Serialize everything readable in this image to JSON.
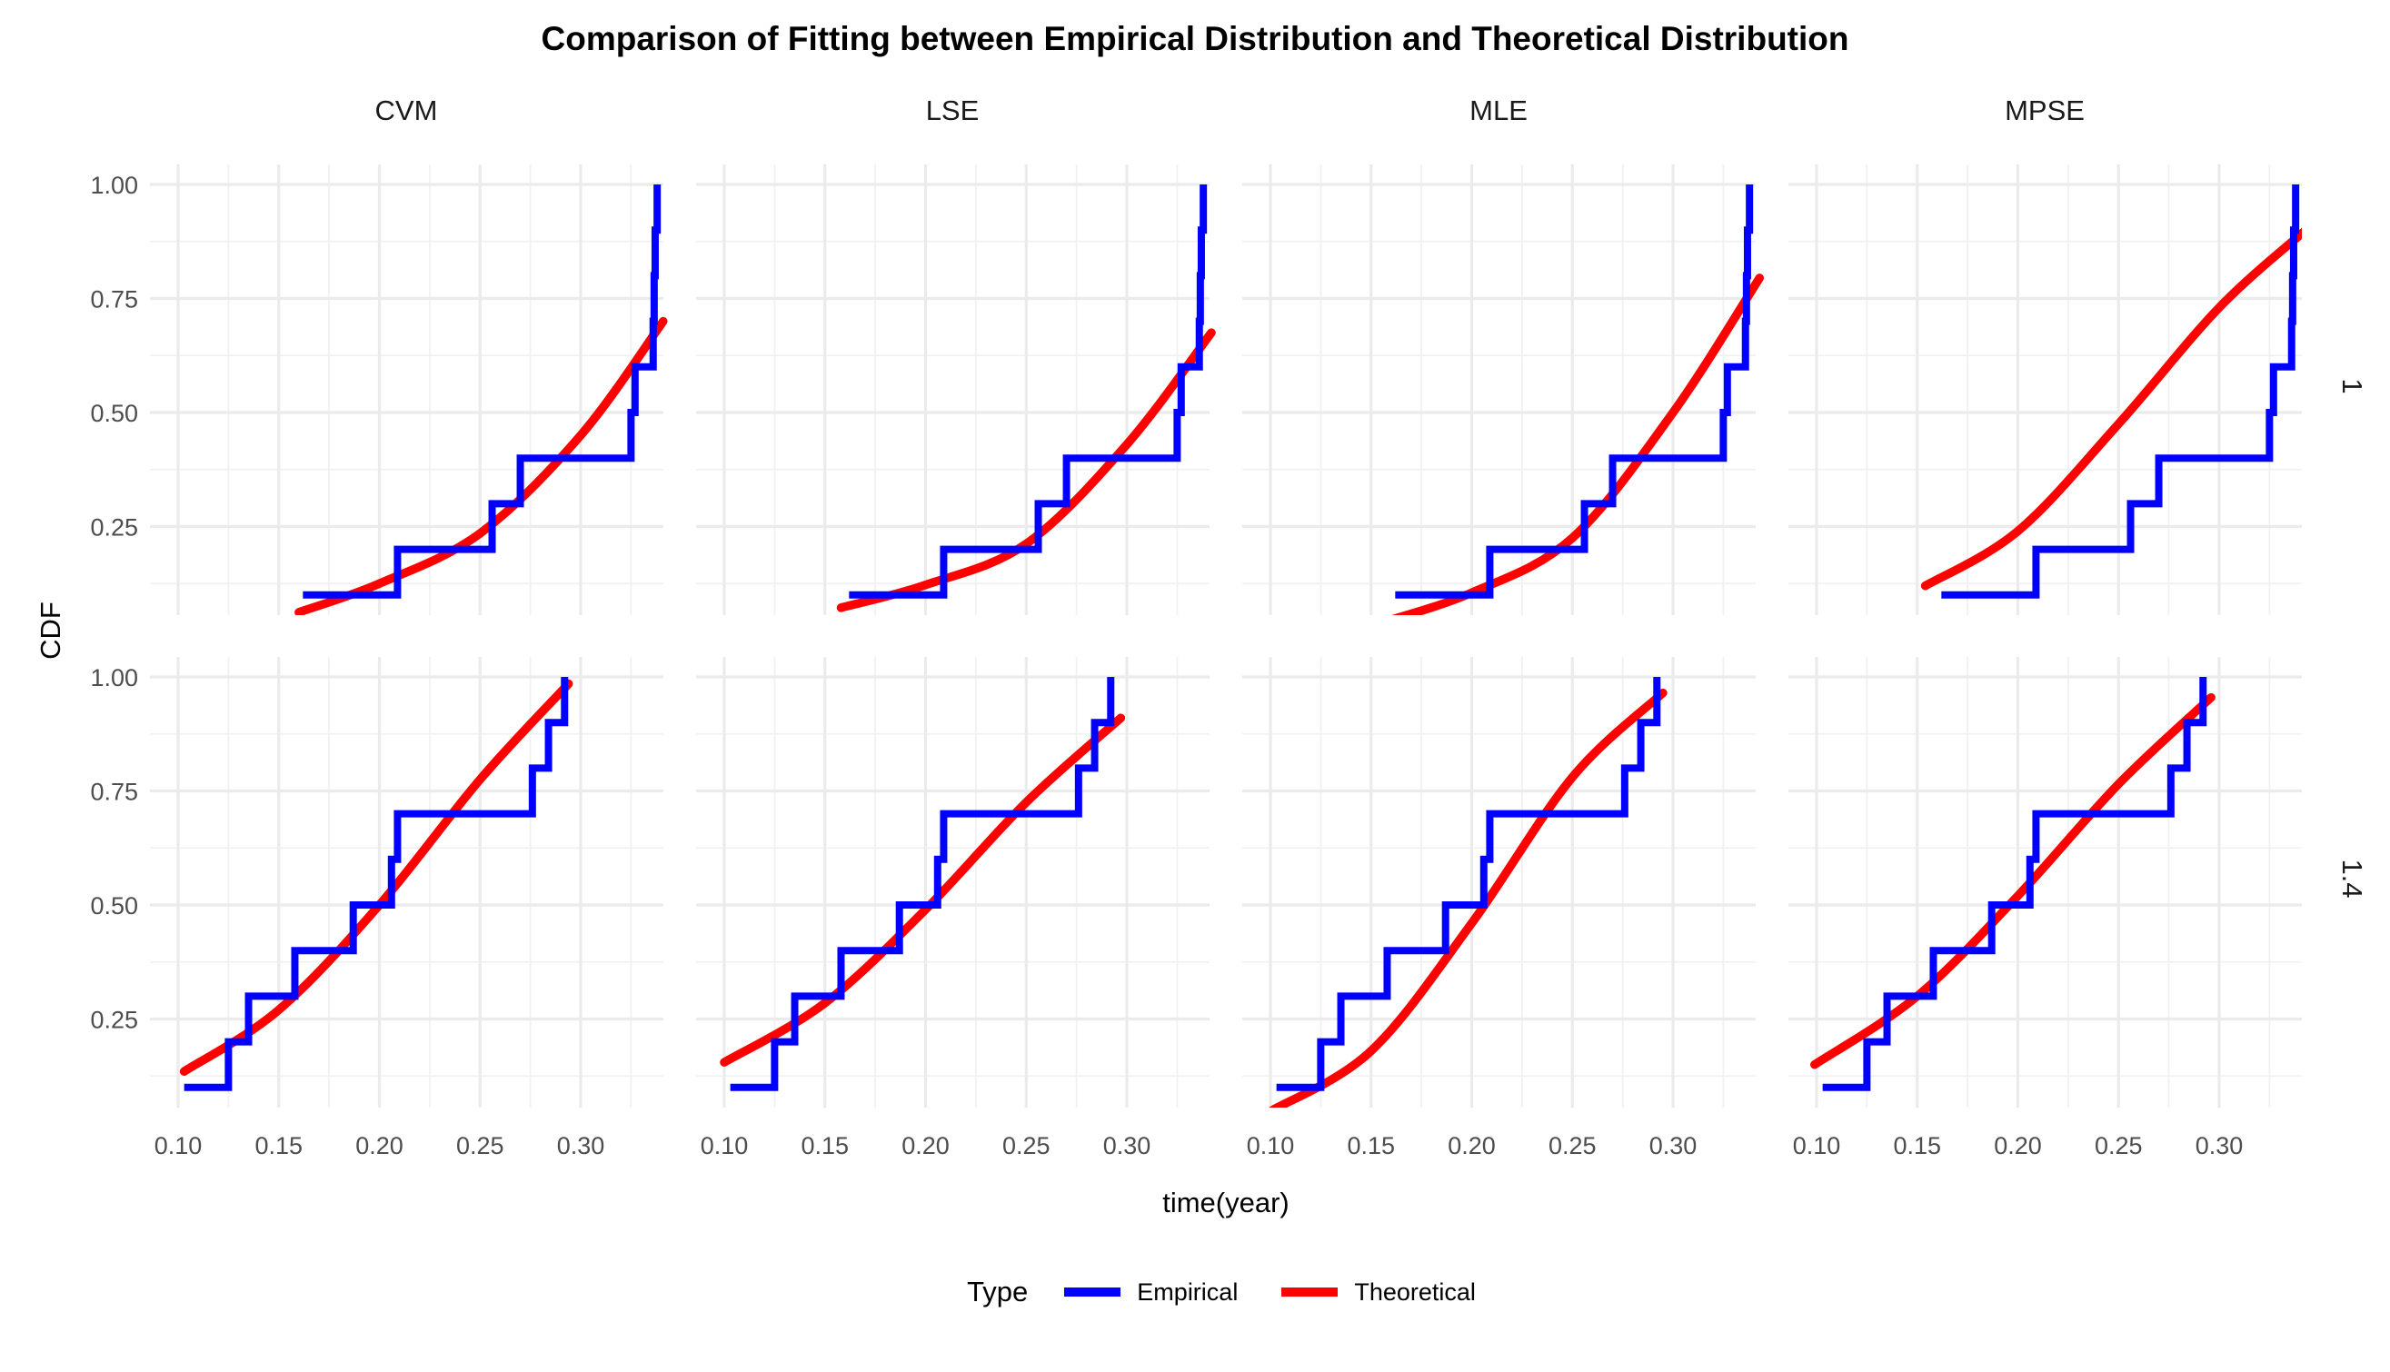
{
  "title": "Comparison of Fitting between Empirical Distribution and Theoretical Distribution",
  "axes": {
    "x_label": "time(year)",
    "y_label": "CDF",
    "x_tick_labels": [
      "0.10",
      "0.15",
      "0.20",
      "0.25",
      "0.30"
    ],
    "y_tick_labels": [
      "1.00",
      "0.75",
      "0.50",
      "0.25"
    ]
  },
  "facets": {
    "columns": [
      "CVM",
      "LSE",
      "MLE",
      "MPSE"
    ],
    "rows": [
      "1",
      "1.4"
    ]
  },
  "legend": {
    "title": "Type",
    "items": [
      {
        "label": "Empirical",
        "color": "#0000FF"
      },
      {
        "label": "Theoretical",
        "color": "#FF0000"
      }
    ]
  },
  "colors": {
    "empirical": "#0000FF",
    "theoretical": "#FF0000",
    "grid_major": "#EBEBEB",
    "grid_minor": "#F1F1F1",
    "axis_text": "#4d4d4d",
    "background": "#FFFFFF"
  },
  "chart_data": {
    "type": "line",
    "title": "Comparison of Fitting between Empirical Distribution and Theoretical Distribution",
    "xlabel": "time(year)",
    "ylabel": "CDF",
    "facet_columns": [
      "CVM",
      "LSE",
      "MLE",
      "MPSE"
    ],
    "facet_rows": [
      "1",
      "1.4"
    ],
    "x_ticks": [
      0.1,
      0.15,
      0.2,
      0.25,
      0.3
    ],
    "x_minor_ticks": [
      0.125,
      0.175,
      0.225,
      0.275,
      0.325
    ],
    "y_ticks": [
      0.25,
      0.5,
      0.75,
      1.0
    ],
    "y_minor_ticks": [
      0.125,
      0.375,
      0.625,
      0.875
    ],
    "x_domain": [
      0.086,
      0.341
    ],
    "y_domain": [
      0.055,
      1.045
    ],
    "grid": true,
    "legend_position": "bottom",
    "ecdf_step": 0.1,
    "empirical_by_row": {
      "1": [
        0.162,
        0.209,
        0.256,
        0.27,
        0.325,
        0.327,
        0.336,
        0.3365,
        0.337,
        0.338
      ],
      "1.4": [
        0.103,
        0.125,
        0.135,
        0.158,
        0.187,
        0.206,
        0.209,
        0.276,
        0.284,
        0.292
      ]
    },
    "theoretical": {
      "1": {
        "CVM": [
          [
            0.16,
            0.062
          ],
          [
            0.2,
            0.125
          ],
          [
            0.25,
            0.235
          ],
          [
            0.3,
            0.45
          ],
          [
            0.341,
            0.7
          ]
        ],
        "LSE": [
          [
            0.158,
            0.072
          ],
          [
            0.2,
            0.122
          ],
          [
            0.25,
            0.212
          ],
          [
            0.3,
            0.43
          ],
          [
            0.342,
            0.675
          ]
        ],
        "MLE": [
          [
            0.152,
            0.035
          ],
          [
            0.2,
            0.105
          ],
          [
            0.25,
            0.225
          ],
          [
            0.3,
            0.5
          ],
          [
            0.343,
            0.795
          ]
        ],
        "MPSE": [
          [
            0.154,
            0.12
          ],
          [
            0.2,
            0.24
          ],
          [
            0.25,
            0.475
          ],
          [
            0.3,
            0.73
          ],
          [
            0.343,
            0.9
          ]
        ]
      },
      "1.4": {
        "CVM": [
          [
            0.103,
            0.135
          ],
          [
            0.15,
            0.27
          ],
          [
            0.2,
            0.5
          ],
          [
            0.25,
            0.775
          ],
          [
            0.294,
            0.985
          ]
        ],
        "LSE": [
          [
            0.1,
            0.155
          ],
          [
            0.15,
            0.285
          ],
          [
            0.2,
            0.49
          ],
          [
            0.25,
            0.725
          ],
          [
            0.297,
            0.91
          ]
        ],
        "MLE": [
          [
            0.101,
            0.05
          ],
          [
            0.15,
            0.18
          ],
          [
            0.2,
            0.46
          ],
          [
            0.25,
            0.78
          ],
          [
            0.295,
            0.965
          ]
        ],
        "MPSE": [
          [
            0.099,
            0.15
          ],
          [
            0.15,
            0.3
          ],
          [
            0.2,
            0.52
          ],
          [
            0.25,
            0.765
          ],
          [
            0.296,
            0.955
          ]
        ]
      }
    }
  }
}
